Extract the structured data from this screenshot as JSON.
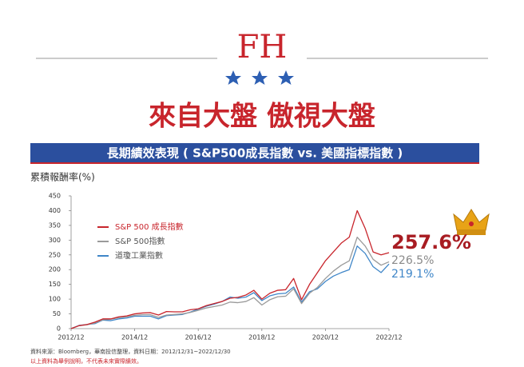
{
  "header": {
    "logo": "FH",
    "headline": "來自大盤  傲視大盤"
  },
  "chart_data": {
    "type": "line",
    "title": "長期績效表現 ( S&P500成長指數 vs. 美國指標指數 )",
    "y_label": "累積報酬率(%)",
    "x": [
      "2012/12",
      "2013/03",
      "2013/06",
      "2013/09",
      "2013/12",
      "2014/03",
      "2014/06",
      "2014/09",
      "2014/12",
      "2015/03",
      "2015/06",
      "2015/09",
      "2015/12",
      "2016/03",
      "2016/06",
      "2016/09",
      "2016/12",
      "2017/03",
      "2017/06",
      "2017/09",
      "2017/12",
      "2018/03",
      "2018/06",
      "2018/09",
      "2018/12",
      "2019/03",
      "2019/06",
      "2019/09",
      "2019/12",
      "2020/03",
      "2020/06",
      "2020/09",
      "2020/12",
      "2021/03",
      "2021/06",
      "2021/09",
      "2021/12",
      "2022/03",
      "2022/06",
      "2022/09",
      "2022/12"
    ],
    "xlim": [
      "2012/12",
      "2022/12"
    ],
    "xticks": [
      "2012/12",
      "2014/12",
      "2016/12",
      "2018/12",
      "2020/12",
      "2022/12"
    ],
    "ylim": [
      0,
      450
    ],
    "yticks": [
      0,
      50,
      100,
      150,
      200,
      250,
      300,
      350,
      400,
      450
    ],
    "grid": false,
    "legend": "upper-left",
    "series": [
      {
        "name": "S&P 500 成長指數",
        "color": "#c8252c",
        "values": [
          0,
          10,
          14,
          22,
          33,
          33,
          40,
          43,
          50,
          53,
          54,
          46,
          58,
          57,
          57,
          64,
          67,
          78,
          85,
          92,
          103,
          106,
          114,
          130,
          100,
          120,
          130,
          132,
          170,
          98,
          150,
          190,
          230,
          260,
          290,
          310,
          400,
          340,
          260,
          250,
          257.6
        ],
        "value_labels": [
          null,
          null,
          null,
          null,
          null,
          null,
          null,
          null,
          null,
          null,
          null,
          null,
          null,
          null,
          null,
          null,
          null,
          null,
          null,
          null,
          null,
          null,
          null,
          null,
          null,
          null,
          null,
          null,
          null,
          null,
          null,
          null,
          null,
          null,
          null,
          null,
          null,
          null,
          null,
          null,
          "257.6%"
        ]
      },
      {
        "name": "S&P 500指數",
        "color": "#9a9a9a",
        "values": [
          0,
          10,
          13,
          19,
          30,
          32,
          37,
          40,
          45,
          47,
          47,
          38,
          46,
          48,
          50,
          55,
          62,
          70,
          75,
          80,
          90,
          88,
          92,
          105,
          80,
          98,
          108,
          110,
          135,
          85,
          120,
          140,
          170,
          195,
          215,
          230,
          310,
          280,
          235,
          215,
          226.5
        ],
        "value_labels": [
          null,
          null,
          null,
          null,
          null,
          null,
          null,
          null,
          null,
          null,
          null,
          null,
          null,
          null,
          null,
          null,
          null,
          null,
          null,
          null,
          null,
          null,
          null,
          null,
          null,
          null,
          null,
          null,
          null,
          null,
          null,
          null,
          null,
          null,
          null,
          null,
          null,
          null,
          null,
          null,
          "226.5%"
        ]
      },
      {
        "name": "道瓊工業指數",
        "color": "#3f86c8",
        "values": [
          0,
          11,
          14,
          17,
          29,
          27,
          33,
          36,
          42,
          42,
          42,
          33,
          44,
          46,
          48,
          56,
          66,
          76,
          83,
          92,
          107,
          103,
          107,
          122,
          95,
          111,
          118,
          120,
          141,
          90,
          125,
          135,
          160,
          178,
          190,
          200,
          280,
          255,
          210,
          190,
          219.1
        ],
        "value_labels": [
          null,
          null,
          null,
          null,
          null,
          null,
          null,
          null,
          null,
          null,
          null,
          null,
          null,
          null,
          null,
          null,
          null,
          null,
          null,
          null,
          null,
          null,
          null,
          null,
          null,
          null,
          null,
          null,
          null,
          null,
          null,
          null,
          null,
          null,
          null,
          null,
          null,
          null,
          null,
          null,
          "219.1%"
        ]
      }
    ],
    "source": "資料來源：Bloomberg，華南投信整理，資料日期：2012/12/31~2022/12/30",
    "note": "以上資料為舉例說明，不代表未來實際績效。"
  }
}
